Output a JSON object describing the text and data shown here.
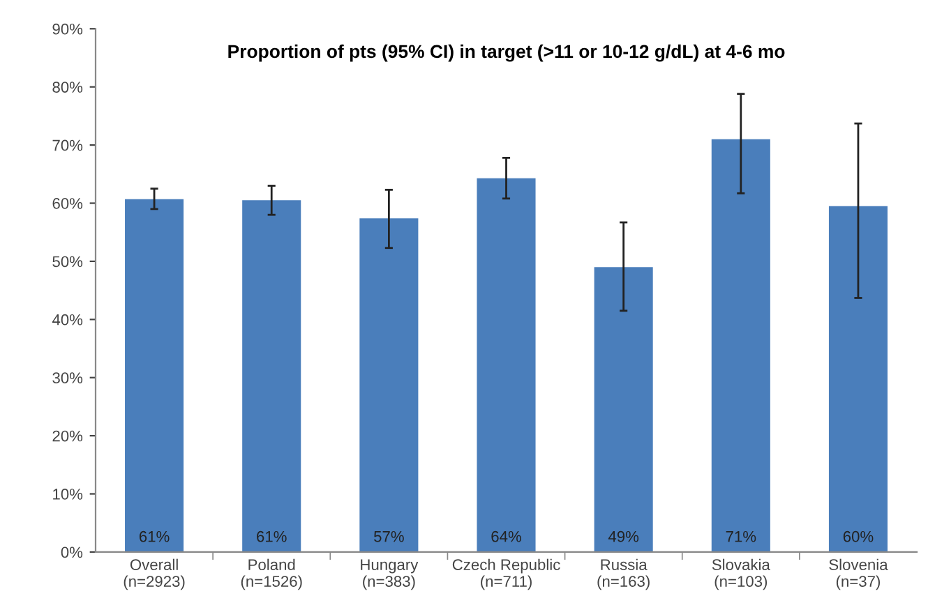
{
  "chart_data": {
    "type": "bar",
    "title": "Proportion of pts (95% CI) in target (>11 or 10-12 g/dL) at 4-6 mo",
    "categories": [
      "Overall\n(n=2923)",
      "Poland\n(n=1526)",
      "Hungary\n(n=383)",
      "Czech Republic\n(n=711)",
      "Russia\n(n=163)",
      "Slovakia\n(n=103)",
      "Slovenia\n(n=37)"
    ],
    "values": [
      60.7,
      60.5,
      57.4,
      64.3,
      49.0,
      71.0,
      59.5
    ],
    "errors": [
      [
        59.0,
        62.5
      ],
      [
        58.0,
        63.0
      ],
      [
        52.3,
        62.3
      ],
      [
        60.8,
        67.8
      ],
      [
        41.5,
        56.7
      ],
      [
        61.7,
        78.8
      ],
      [
        43.7,
        73.7
      ]
    ],
    "value_labels": [
      "61%",
      "61%",
      "57%",
      "64%",
      "49%",
      "71%",
      "60%"
    ],
    "color": "#4a7ebb",
    "ylim": [
      0,
      90
    ],
    "yticks": [
      {
        "value": 0,
        "label": "0%"
      },
      {
        "value": 10,
        "label": "10%"
      },
      {
        "value": 20,
        "label": "20%"
      },
      {
        "value": 30,
        "label": "30%"
      },
      {
        "value": 40,
        "label": "40%"
      },
      {
        "value": 50,
        "label": "50%"
      },
      {
        "value": 60,
        "label": "60%"
      },
      {
        "value": 70,
        "label": "70%"
      },
      {
        "value": 80,
        "label": "80%"
      },
      {
        "value": 90,
        "label": "90%"
      }
    ],
    "grid": false,
    "legend": false
  }
}
